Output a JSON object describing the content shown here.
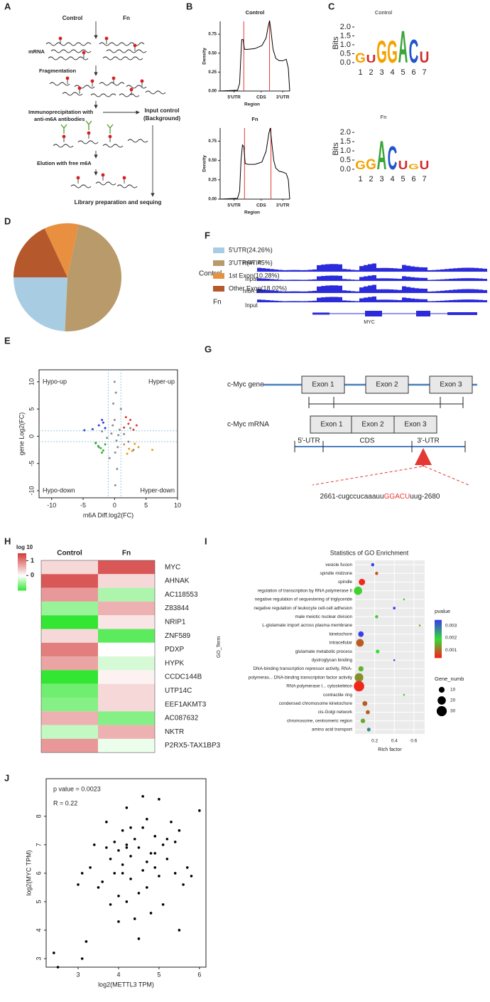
{
  "panel_labels": [
    "A",
    "B",
    "C",
    "D",
    "E",
    "F",
    "G",
    "H",
    "I",
    "J"
  ],
  "panel_a": {
    "conditions": [
      "Control",
      "Fn"
    ],
    "steps": [
      "mRNA",
      "Fragmentation",
      "Immunoprecipitation with",
      "anti-m6A antibodies",
      "Elution with free m6A"
    ],
    "input": [
      "Input control",
      "(Background)"
    ],
    "final": "Library preparation and sequing"
  },
  "panel_f": {
    "conditions": [
      "Control",
      "Fn"
    ],
    "tracks": [
      "m6A IP",
      "Input",
      "m6A IP",
      "Input"
    ],
    "gene": "MYC"
  },
  "panel_g": {
    "gene_label": "c-Myc  gene",
    "mrna_label": "c-Myc  mRNA",
    "gene_exons": [
      "Exon 1",
      "Exon 2",
      "Exon 3"
    ],
    "mrna_exons": [
      "Exon 1",
      "Exon 2",
      "Exon 3"
    ],
    "regions": [
      "5'-UTR",
      "CDS",
      "3'-UTR"
    ],
    "sequence": [
      "2661-cugccucaaauu",
      "GGACU",
      "uug-2680"
    ]
  },
  "chart_data": [
    {
      "type": "line",
      "title": "Control",
      "xlabel": "Region",
      "ylabel": "Density",
      "x": [
        0,
        0.25,
        0.28,
        0.3,
        0.31,
        0.33,
        0.35,
        0.4,
        0.5,
        0.6,
        0.66,
        0.69,
        0.71,
        0.73,
        0.76,
        0.8,
        0.85,
        0.9,
        0.95,
        0.98,
        1.0
      ],
      "values": [
        0,
        0.01,
        0.1,
        0.5,
        0.68,
        0.68,
        0.55,
        0.55,
        0.56,
        0.6,
        0.7,
        0.85,
        0.93,
        0.8,
        0.55,
        0.43,
        0.4,
        0.4,
        0.42,
        0.3,
        0
      ],
      "color": "#000000",
      "xlim": [
        0,
        1
      ],
      "ylim": [
        0,
        0.92
      ],
      "yticks": [
        {
          "value": 0,
          "label": "0.00"
        },
        0.25,
        {
          "value": 0.5,
          "label": "0.50"
        },
        0.75
      ],
      "xticks": [
        {
          "value": 0.2,
          "label": "5'UTR"
        },
        {
          "value": 0.59,
          "label": "CDS"
        },
        {
          "value": 0.9,
          "label": "3'UTR"
        }
      ],
      "vlines": [
        0.34,
        0.71
      ],
      "vline_color": "#e53935"
    },
    {
      "type": "line",
      "title": "Fn",
      "xlabel": "Region",
      "ylabel": "Density",
      "x": [
        0,
        0.25,
        0.28,
        0.3,
        0.32,
        0.34,
        0.36,
        0.4,
        0.5,
        0.6,
        0.66,
        0.7,
        0.72,
        0.74,
        0.77,
        0.8,
        0.85,
        0.9,
        0.95,
        0.98,
        1.0
      ],
      "values": [
        0,
        0.01,
        0.1,
        0.5,
        0.7,
        0.68,
        0.46,
        0.45,
        0.45,
        0.48,
        0.62,
        0.85,
        0.92,
        0.75,
        0.5,
        0.4,
        0.36,
        0.35,
        0.33,
        0.25,
        0
      ],
      "color": "#000000",
      "xlim": [
        0,
        1
      ],
      "ylim": [
        0,
        0.92
      ],
      "yticks": [
        {
          "value": 0,
          "label": "0.00"
        },
        0.25,
        {
          "value": 0.5,
          "label": "0.50"
        },
        0.75
      ],
      "xticks": [
        {
          "value": 0.2,
          "label": "5'UTR"
        },
        {
          "value": 0.59,
          "label": "CDS"
        },
        {
          "value": 0.9,
          "label": "3'UTR"
        }
      ],
      "vlines": [
        0.35,
        0.73
      ],
      "vline_color": "#e53935"
    },
    {
      "type": "pie",
      "categories": [
        "5'UTR(24.26%)",
        "3'UTR(47.45%)",
        "1st Exon(10.28%)",
        "Other Exon(18.02%)"
      ],
      "values": [
        24.26,
        47.45,
        10.28,
        18.02
      ],
      "colors": [
        "#a8cde3",
        "#b89a6b",
        "#e8903f",
        "#b5582c"
      ]
    },
    {
      "type": "scatter",
      "xlabel": "m6A Diff.log2(FC)",
      "ylabel": "gene Log2(FC)",
      "annotations": [
        "Hypo-up",
        "Hyper-up",
        "Hypo-down",
        "Hyper-down"
      ],
      "xlim": [
        -12,
        10
      ],
      "ylim": [
        -11.3,
        12.2
      ],
      "xticks": [
        -10,
        -5,
        0,
        5,
        10
      ],
      "yticks": [
        -10,
        -5,
        0,
        5,
        10
      ],
      "thresholds": [
        -1,
        1
      ],
      "series": [
        {
          "color": "#8c8c8c",
          "x": [
            -0.5,
            0.3,
            0.8,
            -1.2,
            1.5,
            -2,
            2.2,
            0,
            0.1,
            -0.3,
            0.5,
            -0.8,
            1,
            -1.5,
            0.2,
            3,
            -3,
            0.4,
            0,
            0.1,
            -0.2,
            2.5,
            -2.5,
            0.6
          ],
          "values": [
            0.5,
            -0.8,
            1.2,
            -0.3,
            0.4,
            0.9,
            -1,
            3,
            -3,
            2,
            -2,
            -4,
            5,
            1.5,
            8,
            -2.5,
            -1.2,
            -6,
            10,
            -9,
            6,
            1.5,
            -2,
            0.2
          ]
        },
        {
          "color": "#2a3fd6",
          "x": [
            -1.5,
            -2.5,
            -3.5,
            -2,
            -4.8,
            -1.8
          ],
          "values": [
            1.5,
            2,
            1.3,
            3,
            1.1,
            2.5
          ]
        },
        {
          "color": "#e03a2a",
          "x": [
            1.5,
            2.2,
            3,
            2.5,
            1.8,
            3.5
          ],
          "values": [
            1.6,
            2.3,
            1.2,
            3,
            3.5,
            2
          ]
        },
        {
          "color": "#33b033",
          "x": [
            -1.5,
            -2.2,
            -3,
            -2,
            -1.8,
            -2.6
          ],
          "values": [
            -1.5,
            -2.2,
            -1.3,
            -3,
            -2.6,
            -1.8
          ]
        },
        {
          "color": "#e0a020",
          "x": [
            1.5,
            2.3,
            3.2,
            2,
            2.8,
            3.8,
            6
          ],
          "values": [
            -1.5,
            -2.3,
            -1.4,
            -3.2,
            -2.7,
            -2,
            -2.5
          ]
        }
      ]
    },
    {
      "type": "heatmap",
      "columns": [
        "Control",
        "Fn"
      ],
      "rows": [
        "MYC",
        "AHNAK",
        "AC118553",
        "Z83844",
        "NRIP1",
        "ZNF589",
        "PDXP",
        "HYPK",
        "CCDC144B",
        "UTP14C",
        "EEF1AKMT3",
        "AC087632",
        "NKTR",
        "P2RX5-TAX1BP3"
      ],
      "values": [
        [
          0.3,
          1.3
        ],
        [
          1.3,
          0.3
        ],
        [
          0.8,
          -0.4
        ],
        [
          -0.5,
          0.6
        ],
        [
          -1,
          0.2
        ],
        [
          0.3,
          -0.8
        ],
        [
          1.0,
          0
        ],
        [
          0.7,
          -0.2
        ],
        [
          -1,
          0.1
        ],
        [
          -0.7,
          0.3
        ],
        [
          -0.6,
          0.3
        ],
        [
          0.6,
          -0.6
        ],
        [
          -0.3,
          0.6
        ],
        [
          0.8,
          -0.1
        ]
      ],
      "colorbar_title": "log 10",
      "color_stops": [
        -1,
        0,
        1.5
      ],
      "colors": [
        "#33e633",
        "#ffffff",
        "#d43d3d"
      ],
      "colorbar_ticks": [
        1,
        0
      ]
    },
    {
      "type": "bubble",
      "title": "Statistics of GO Enrichment",
      "xlabel": "Rich factor",
      "ylabel": "GO_Term",
      "categories": [
        "vesicle fusion",
        "spindle midzone",
        "spindle",
        "regulation of transcription by RNA polymerase II",
        "negative regulation of sequestering of triglyceride",
        "negative regulation of leukocyte cell-cell adhesion",
        "male meiotic nuclear division",
        "L-glutamate import across plasma membrane",
        "kinetochore",
        "intracellular",
        "glutamate metabolic process",
        "dystroglycan binding",
        "DNA-binding transcription repressor activity, RNA-",
        "polymeras... DNA-binding transcription factor activity",
        "RNA polymerase I... cytoskeleton",
        "contractile ring",
        "condensed chromosome kinetochore",
        "cis-Golgi network",
        "chromosome, centromeric region",
        "amino acid transport"
      ],
      "x": [
        0.18,
        0.22,
        0.07,
        0.03,
        0.5,
        0.4,
        0.22,
        0.66,
        0.06,
        0.05,
        0.23,
        0.4,
        0.06,
        0.04,
        0.04,
        0.5,
        0.1,
        0.13,
        0.08,
        0.14
      ],
      "pvalue": [
        0.0034,
        0.0008,
        0.0005,
        0.0018,
        0.0019,
        0.0034,
        0.0018,
        0.0015,
        0.0034,
        0.0009,
        0.0019,
        0.0034,
        0.0016,
        0.0013,
        0.0005,
        0.0019,
        0.0009,
        0.0009,
        0.0015,
        0.0027
      ],
      "size": [
        3,
        3,
        12,
        20,
        1,
        2,
        3,
        1,
        9,
        17,
        4,
        1,
        8,
        22,
        32,
        1,
        7,
        5,
        6,
        4
      ],
      "xlim": [
        0,
        0.71
      ],
      "xticks": [
        0.2,
        0.4,
        0.6
      ],
      "color_title": "pvalue",
      "color_stops": [
        0.00039,
        0.0019,
        0.00344
      ],
      "colors": [
        "#ff1a1a",
        "#33dd33",
        "#3a3aee"
      ],
      "colorbar_ticks": [
        0.003,
        0.002,
        0.001
      ],
      "size_title": "Gene_numb",
      "size_ticks": [
        10,
        20,
        30
      ]
    },
    {
      "type": "scatter",
      "xlabel": "log2(METTL3 TPM)",
      "ylabel": "log2(MYC TPM)",
      "annotations": [
        "p value = 0.0023",
        "R = 0.22"
      ],
      "xlim": [
        2.21,
        6.16
      ],
      "ylim": [
        2.7,
        9.32
      ],
      "xticks": [
        3,
        4,
        5,
        6
      ],
      "yticks": [
        3,
        4,
        5,
        6,
        7,
        8
      ],
      "series": [
        {
          "color": "#000000",
          "x": [
            2.4,
            2.5,
            3.1,
            3.2,
            3.0,
            3.1,
            3.3,
            3.5,
            3.6,
            3.7,
            3.7,
            3.8,
            3.9,
            3.9,
            4.0,
            4.0,
            4.1,
            4.1,
            4.2,
            4.2,
            4.2,
            4.3,
            4.3,
            4.4,
            4.4,
            4.5,
            4.5,
            4.6,
            4.6,
            4.7,
            4.7,
            4.8,
            4.8,
            4.9,
            4.9,
            5.0,
            5.0,
            5.1,
            5.1,
            5.2,
            5.3,
            5.4,
            5.5,
            5.5,
            5.6,
            5.7,
            5.8,
            6.0,
            4.0,
            4.6,
            3.4,
            4.3,
            4.5,
            4.9,
            5.2,
            3.8,
            4.1,
            4.7,
            5.4,
            4.2
          ],
          "values": [
            3.2,
            2.7,
            3.0,
            3.6,
            5.6,
            6.0,
            6.2,
            5.5,
            5.7,
            6.9,
            7.8,
            6.5,
            7.1,
            6.0,
            5.2,
            6.8,
            7.5,
            6.3,
            5.0,
            7.0,
            8.3,
            6.6,
            5.8,
            7.2,
            4.4,
            6.9,
            3.7,
            7.6,
            6.1,
            5.5,
            7.9,
            6.7,
            4.6,
            7.3,
            6.2,
            8.6,
            5.9,
            7.0,
            4.9,
            6.5,
            7.8,
            6.0,
            4.0,
            7.5,
            5.6,
            6.2,
            5.9,
            8.2,
            4.3,
            8.7,
            7.0,
            7.6,
            5.3,
            6.7,
            7.2,
            4.9,
            6.0,
            6.4,
            7.1,
            6.9
          ]
        }
      ]
    },
    {
      "type": "logo",
      "title": "Control",
      "ylabel": "Bits",
      "letters": [
        "G",
        "U",
        "G",
        "G",
        "A",
        "C",
        "U"
      ],
      "heights": [
        0.55,
        0.45,
        1.3,
        1.3,
        1.85,
        1.35,
        0.65
      ],
      "ylim": [
        0,
        2.2
      ],
      "yticks": [
        {
          "value": 0,
          "label": "0.0"
        },
        0.5,
        {
          "value": 1,
          "label": "1.0"
        },
        1.5,
        {
          "value": 2,
          "label": "2.0"
        }
      ],
      "xticks": [
        1,
        2,
        3,
        4,
        5,
        6,
        7
      ],
      "letter_colors": {
        "G": "#f5a300",
        "A": "#3aa63a",
        "C": "#2255cc",
        "U": "#d42a2a"
      }
    },
    {
      "type": "logo",
      "title": "Fn",
      "ylabel": "Bits",
      "letters": [
        "G",
        "G",
        "A",
        "C",
        "U",
        "G",
        "U"
      ],
      "heights": [
        0.5,
        0.6,
        1.6,
        1.3,
        0.5,
        0.3,
        0.5
      ],
      "ylim": [
        0,
        2.2
      ],
      "yticks": [
        {
          "value": 0,
          "label": "0.0"
        },
        0.5,
        {
          "value": 1,
          "label": "1.0"
        },
        1.5,
        {
          "value": 2,
          "label": "2.0"
        }
      ],
      "xticks": [
        1,
        2,
        3,
        4,
        5,
        6,
        7
      ],
      "letter_colors": {
        "G": "#f5a300",
        "A": "#3aa63a",
        "C": "#2255cc",
        "U": "#d42a2a"
      }
    }
  ]
}
